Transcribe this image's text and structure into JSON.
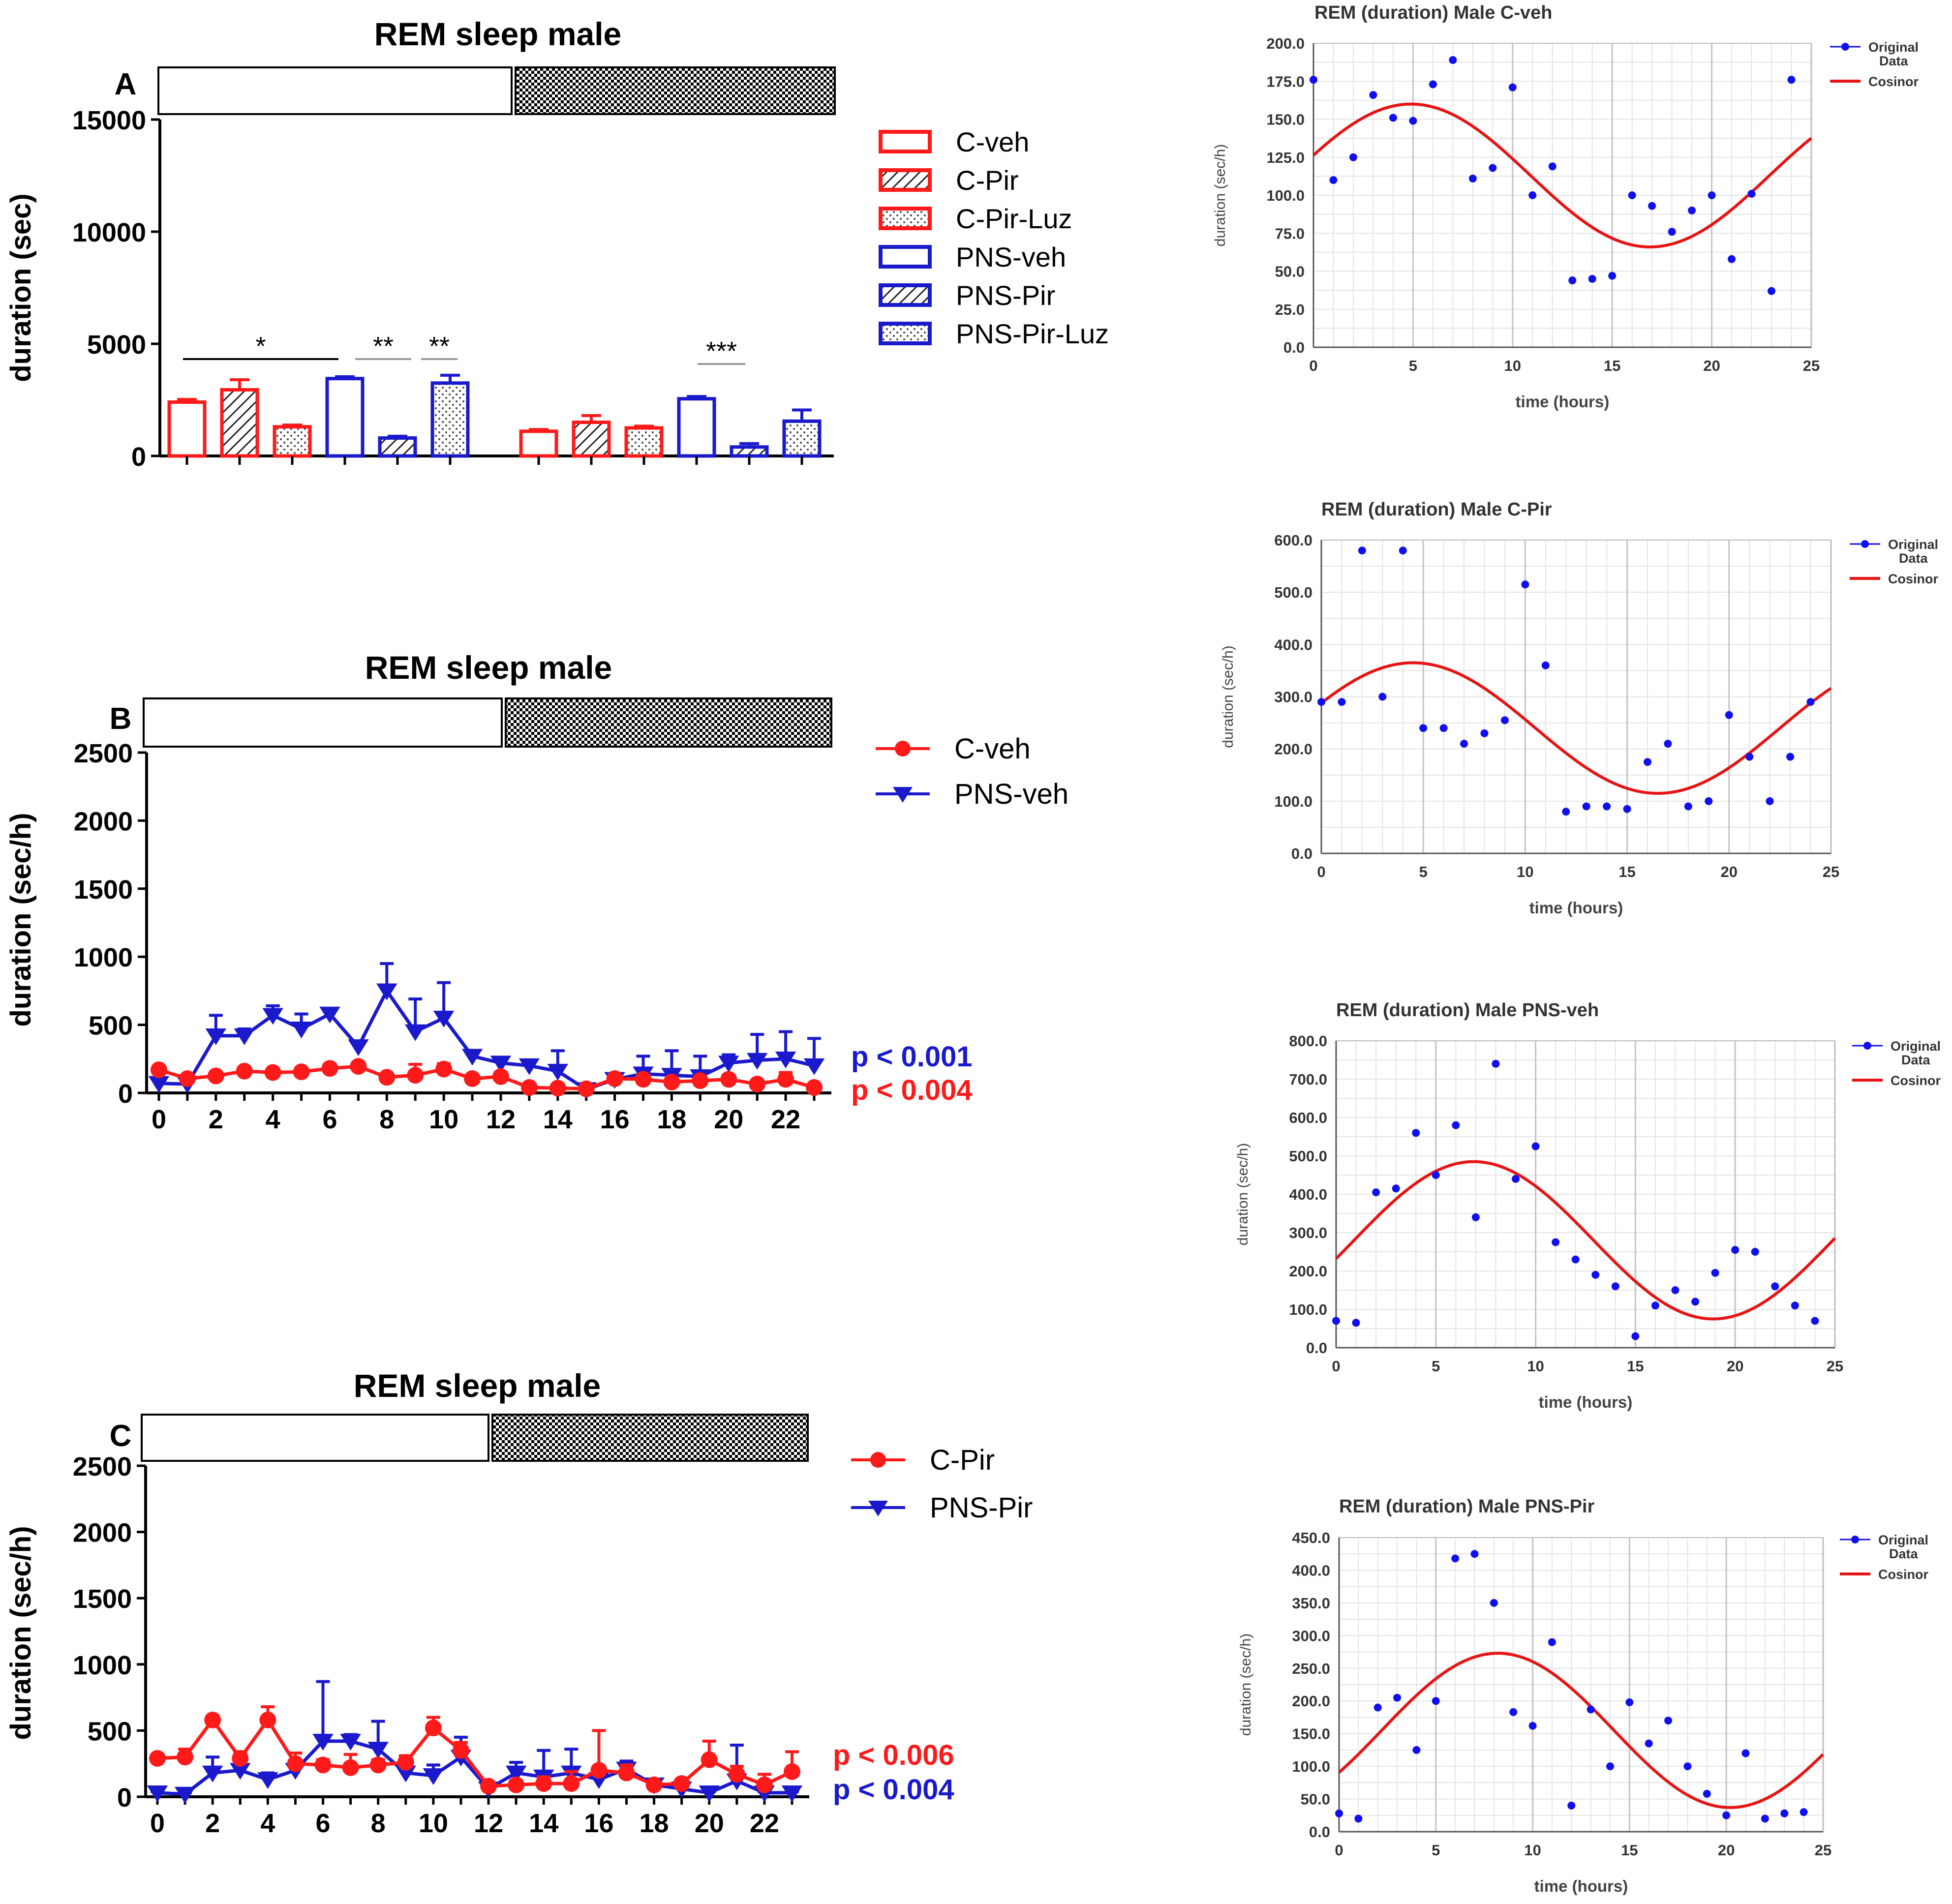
{
  "colors": {
    "red": "#ff1a1a",
    "blue": "#1a1acc",
    "dot_blue": "#1010ee",
    "cosinor_red": "#e61414",
    "grid": "#d6d6d6",
    "black": "#000000"
  },
  "chart_data": [
    {
      "id": "A",
      "type": "bar",
      "panel_label": "A",
      "title": "REM sleep male",
      "xlabel": "",
      "ylabel": "duration (sec)",
      "ylim": [
        0,
        15000
      ],
      "yticks": [
        0,
        5000,
        10000,
        15000
      ],
      "groups": [
        "light",
        "dark"
      ],
      "legend": [
        {
          "name": "C-veh",
          "color": "red",
          "pattern": "open"
        },
        {
          "name": "C-Pir",
          "color": "red",
          "pattern": "hatch"
        },
        {
          "name": "C-Pir-Luz",
          "color": "red",
          "pattern": "dots"
        },
        {
          "name": "PNS-veh",
          "color": "blue",
          "pattern": "open"
        },
        {
          "name": "PNS-Pir",
          "color": "blue",
          "pattern": "hatch"
        },
        {
          "name": "PNS-Pir-Luz",
          "color": "blue",
          "pattern": "dots"
        }
      ],
      "series": [
        {
          "name": "C-veh",
          "values": [
            2400,
            1100
          ],
          "errors": [
            120,
            80
          ]
        },
        {
          "name": "C-Pir",
          "values": [
            2950,
            1500
          ],
          "errors": [
            450,
            300
          ]
        },
        {
          "name": "C-Pir-Luz",
          "values": [
            1300,
            1250
          ],
          "errors": [
            80,
            80
          ]
        },
        {
          "name": "PNS-veh",
          "values": [
            3450,
            2550
          ],
          "errors": [
            80,
            100
          ]
        },
        {
          "name": "PNS-Pir",
          "values": [
            800,
            400
          ],
          "errors": [
            80,
            150
          ]
        },
        {
          "name": "PNS-Pir-Luz",
          "values": [
            3250,
            1550
          ],
          "errors": [
            350,
            500
          ]
        }
      ],
      "significance": [
        {
          "label": "*",
          "group": 0,
          "from_bar": 0,
          "to_bar": 3
        },
        {
          "label": "**",
          "group": 0,
          "from_bar": 3,
          "to_bar": 4
        },
        {
          "label": "**",
          "group": 0,
          "from_bar": 5,
          "to_bar": 5
        },
        {
          "label": "***",
          "group": 1,
          "from_bar": 3,
          "to_bar": 4
        }
      ]
    },
    {
      "id": "B",
      "type": "line",
      "panel_label": "B",
      "title": "REM sleep male",
      "xlabel": "",
      "ylabel": "duration (sec/h)",
      "xlim": [
        0,
        23
      ],
      "ylim": [
        0,
        2500
      ],
      "xticks": [
        0,
        2,
        4,
        6,
        8,
        10,
        12,
        14,
        16,
        18,
        20,
        22
      ],
      "yticks": [
        0,
        500,
        1000,
        1500,
        2000,
        2500
      ],
      "series": [
        {
          "name": "C-veh",
          "color": "red",
          "marker": "circle",
          "values": [
            170,
            105,
            125,
            160,
            150,
            155,
            180,
            195,
            115,
            130,
            175,
            105,
            120,
            40,
            35,
            30,
            105,
            100,
            80,
            90,
            100,
            65,
            100,
            40
          ],
          "errors": [
            20,
            15,
            20,
            20,
            20,
            20,
            30,
            30,
            20,
            80,
            40,
            20,
            30,
            15,
            10,
            10,
            20,
            20,
            20,
            20,
            30,
            20,
            50,
            15
          ]
        },
        {
          "name": "PNS-veh",
          "color": "blue",
          "marker": "triangle-down",
          "values": [
            70,
            65,
            420,
            420,
            570,
            470,
            580,
            340,
            750,
            450,
            550,
            270,
            220,
            200,
            160,
            25,
            100,
            140,
            130,
            120,
            220,
            240,
            250,
            200,
            110
          ],
          "errors": [
            20,
            15,
            150,
            50,
            70,
            110,
            40,
            40,
            200,
            240,
            260,
            40,
            30,
            30,
            150,
            10,
            30,
            130,
            180,
            150,
            60,
            190,
            200,
            200,
            40
          ]
        }
      ],
      "p_values": [
        {
          "text": "p < 0.001",
          "color": "blue"
        },
        {
          "text": "p < 0.004",
          "color": "red"
        }
      ]
    },
    {
      "id": "C",
      "type": "line",
      "panel_label": "C",
      "title": "REM sleep male",
      "xlabel": "",
      "ylabel": "duration (sec/h)",
      "xlim": [
        0,
        23
      ],
      "ylim": [
        0,
        2500
      ],
      "xticks": [
        0,
        2,
        4,
        6,
        8,
        10,
        12,
        14,
        16,
        18,
        20,
        22
      ],
      "yticks": [
        0,
        500,
        1000,
        1500,
        2000,
        2500
      ],
      "series": [
        {
          "name": "C-Pir",
          "color": "red",
          "marker": "circle",
          "values": [
            290,
            300,
            580,
            290,
            580,
            250,
            240,
            220,
            240,
            260,
            520,
            350,
            80,
            90,
            100,
            100,
            200,
            180,
            90,
            100,
            280,
            170,
            90,
            190
          ],
          "errors": [
            20,
            60,
            30,
            50,
            100,
            80,
            40,
            100,
            40,
            50,
            80,
            60,
            20,
            30,
            50,
            90,
            300,
            60,
            30,
            30,
            140,
            60,
            80,
            150
          ]
        },
        {
          "name": "PNS-Pir",
          "color": "blue",
          "marker": "triangle-down",
          "values": [
            30,
            20,
            180,
            200,
            130,
            200,
            420,
            420,
            360,
            180,
            160,
            300,
            60,
            180,
            150,
            180,
            130,
            210,
            90,
            60,
            30,
            120,
            30,
            30
          ],
          "errors": [
            10,
            10,
            120,
            60,
            50,
            60,
            450,
            50,
            210,
            60,
            80,
            150,
            20,
            80,
            200,
            180,
            100,
            60,
            20,
            20,
            10,
            270,
            10,
            10
          ]
        }
      ],
      "p_values": [
        {
          "text": "p < 0.006",
          "color": "red"
        },
        {
          "text": "p < 0.004",
          "color": "blue"
        }
      ]
    },
    {
      "id": "R1",
      "type": "scatter",
      "title": "REM (duration) Male C-veh",
      "xlabel": "time (hours)",
      "ylabel": "duration (sec/h)",
      "xlim": [
        0,
        25
      ],
      "ylim": [
        0,
        200
      ],
      "xticks": [
        0,
        5,
        10,
        15,
        20,
        25
      ],
      "yticks": [
        0,
        25,
        50,
        75,
        100,
        125,
        150,
        175,
        200
      ],
      "ytick_decimals": 1,
      "legend": [
        "Original",
        "Data",
        "Cosinor"
      ],
      "x": [
        0,
        1,
        2,
        3,
        4,
        5,
        6,
        7,
        8,
        9,
        10,
        11,
        12,
        13,
        14,
        15,
        16,
        17,
        18,
        19,
        20,
        21,
        22,
        23,
        24
      ],
      "y": [
        176,
        110,
        125,
        166,
        151,
        149,
        173,
        189,
        111,
        118,
        171,
        100,
        119,
        44,
        45,
        47,
        100,
        93,
        76,
        90,
        100,
        58,
        101,
        37,
        176
      ],
      "cosinor": {
        "mesor": 113,
        "amplitude": 47,
        "acrophase": 4.9,
        "period": 24
      }
    },
    {
      "id": "R2",
      "type": "scatter",
      "title": "REM (duration) Male C-Pir",
      "xlabel": "time (hours)",
      "ylabel": "duration (sec/h)",
      "xlim": [
        0,
        25
      ],
      "ylim": [
        0,
        600
      ],
      "xticks": [
        0,
        5,
        10,
        15,
        20,
        25
      ],
      "yticks": [
        0,
        100,
        200,
        300,
        400,
        500,
        600
      ],
      "ytick_decimals": 1,
      "legend": [
        "Original",
        "Data",
        "Cosinor"
      ],
      "x": [
        0,
        1,
        2,
        3,
        4,
        5,
        6,
        7,
        8,
        9,
        10,
        11,
        12,
        13,
        14,
        15,
        16,
        17,
        18,
        19,
        20,
        21,
        22,
        23,
        24
      ],
      "y": [
        290,
        290,
        580,
        300,
        580,
        240,
        240,
        210,
        230,
        255,
        515,
        360,
        80,
        90,
        90,
        85,
        175,
        210,
        90,
        100,
        265,
        185,
        100,
        185,
        290
      ],
      "cosinor": {
        "mesor": 240,
        "amplitude": 125,
        "acrophase": 4.5,
        "period": 24
      }
    },
    {
      "id": "R3",
      "type": "scatter",
      "title": "REM (duration) Male PNS-veh",
      "xlabel": "time (hours)",
      "ylabel": "duration (sec/h)",
      "xlim": [
        0,
        25
      ],
      "ylim": [
        0,
        800
      ],
      "xticks": [
        0,
        5,
        10,
        15,
        20,
        25
      ],
      "yticks": [
        0,
        100,
        200,
        300,
        400,
        500,
        600,
        700,
        800
      ],
      "ytick_decimals": 1,
      "legend": [
        "Original",
        "Data",
        "Cosinor"
      ],
      "x": [
        0,
        1,
        2,
        3,
        4,
        5,
        6,
        7,
        8,
        9,
        10,
        11,
        12,
        13,
        14,
        15,
        16,
        17,
        18,
        19,
        20,
        21,
        22,
        23,
        24
      ],
      "y": [
        70,
        65,
        405,
        415,
        560,
        450,
        580,
        340,
        740,
        440,
        525,
        275,
        230,
        190,
        160,
        30,
        110,
        150,
        120,
        195,
        255,
        250,
        160,
        110,
        70
      ],
      "cosinor": {
        "mesor": 280,
        "amplitude": 205,
        "acrophase": 6.9,
        "period": 24
      }
    },
    {
      "id": "R4",
      "type": "scatter",
      "title": "REM (duration) Male PNS-Pir",
      "xlabel": "time (hours)",
      "ylabel": "duration (sec/h)",
      "xlim": [
        0,
        25
      ],
      "ylim": [
        0,
        450
      ],
      "xticks": [
        0,
        5,
        10,
        15,
        20,
        25
      ],
      "yticks": [
        0,
        50,
        100,
        150,
        200,
        250,
        300,
        350,
        400,
        450
      ],
      "ytick_decimals": 1,
      "legend": [
        "Original",
        "Data",
        "Cosinor"
      ],
      "x": [
        0,
        1,
        2,
        3,
        4,
        5,
        6,
        7,
        8,
        9,
        10,
        11,
        12,
        13,
        14,
        15,
        16,
        17,
        18,
        19,
        20,
        21,
        22,
        23,
        24
      ],
      "y": [
        28,
        20,
        190,
        205,
        125,
        200,
        418,
        425,
        350,
        183,
        162,
        290,
        40,
        187,
        100,
        198,
        135,
        170,
        100,
        58,
        25,
        120,
        20,
        28,
        30
      ],
      "cosinor": {
        "mesor": 155,
        "amplitude": 118,
        "acrophase": 8.2,
        "period": 24
      }
    }
  ]
}
